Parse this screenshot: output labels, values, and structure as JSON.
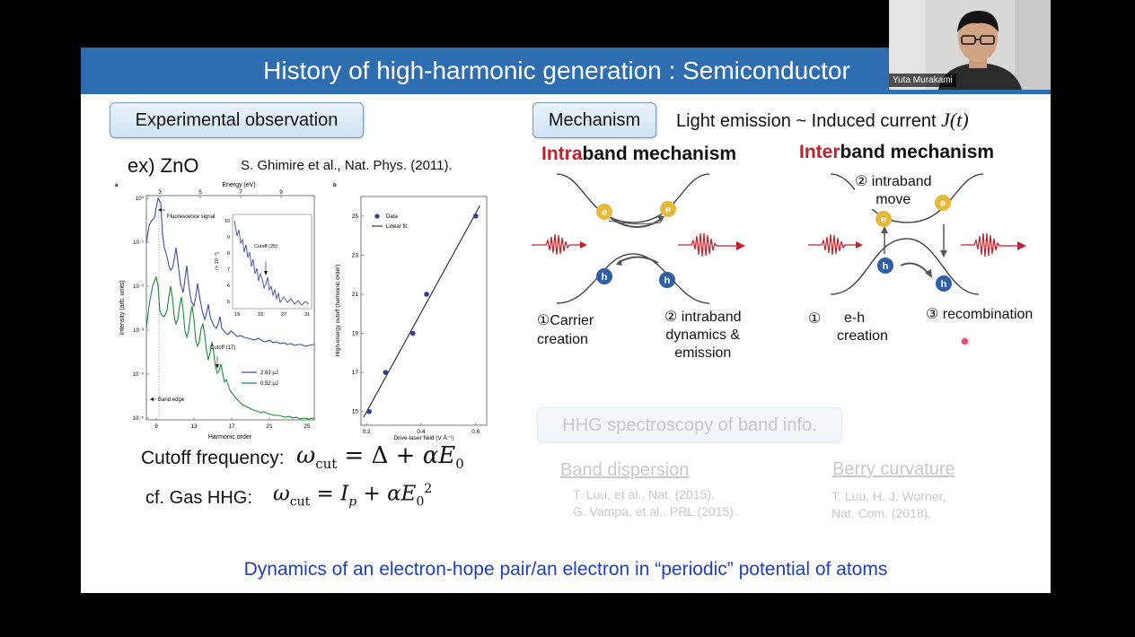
{
  "slide": {
    "title": "History of high-harmonic generation : Semiconductor",
    "bottom_statement": "Dynamics of an electron-hope pair/an electron in “periodic” potential of atoms"
  },
  "webcam": {
    "participant_name": "Yuta Murakami"
  },
  "left": {
    "section_label": "Experimental observation",
    "example_label": "ex) ZnO",
    "citation": "S. Ghimire et al., Nat. Phys. (2011).",
    "cutoff_label": "Cutoff frequency:",
    "cutoff_formula": "ω_cut = Δ + αE₀",
    "gas_label": "cf. Gas HHG:",
    "gas_formula": "ω_cut = I_p + αE₀²"
  },
  "figure_a": {
    "panel_label": "a",
    "top_axis_title": "Energy (eV)",
    "top_ticks": [
      "3",
      "5",
      "7",
      "9"
    ],
    "x_axis_title": "Harmonic order",
    "x_ticks": [
      "9",
      "13",
      "17",
      "21",
      "25"
    ],
    "y_axis_title": "Intensity (arb. units)",
    "y_ticks": [
      "10⁰",
      "10⁻¹",
      "10⁻²",
      "10⁻³",
      "10⁻⁴",
      "10⁻⁵"
    ],
    "annotation_fluorescence": "Fluorescence signal",
    "annotation_cutoff": "Cutoff (17)",
    "annotation_band_edge": "Band edge",
    "legend": [
      "2.63 μJ",
      "0.52 μJ"
    ],
    "inset": {
      "y_axis_title": "(× 10⁻⁴)",
      "y_ticks": [
        "10",
        "9",
        "8",
        "7",
        "6",
        "5"
      ],
      "x_ticks": [
        "19",
        "23",
        "27",
        "31"
      ],
      "annotation": "Cutoff (25)"
    },
    "colors": {
      "high": "#3b4fa0",
      "low": "#1f8a3a"
    }
  },
  "figure_b": {
    "panel_label": "b",
    "x_axis_title": "Drive-laser field (V Å⁻¹)",
    "y_axis_title": "High-energy cutoff (harmonic order)",
    "x_ticks": [
      "0.2",
      "0.4",
      "0.6"
    ],
    "y_ticks": [
      "15",
      "17",
      "19",
      "21",
      "23",
      "25"
    ],
    "legend": [
      "Data",
      "Linear fit"
    ],
    "points": [
      {
        "x": 0.21,
        "y": 15
      },
      {
        "x": 0.27,
        "y": 17
      },
      {
        "x": 0.37,
        "y": 19
      },
      {
        "x": 0.42,
        "y": 21
      },
      {
        "x": 0.6,
        "y": 25
      }
    ]
  },
  "right": {
    "section_label": "Mechanism",
    "emission_text": "Light emission ~ Induced current",
    "emission_symbol": "J(t)",
    "intra_prefix": "Intra",
    "intra_suffix": "band mechanism",
    "inter_prefix": "Inter",
    "inter_suffix": "band mechanism",
    "intra_step1": [
      "①Carrier",
      "creation"
    ],
    "intra_step2": [
      "② intraband",
      "dynamics &",
      "emission"
    ],
    "inter_step1": [
      "①",
      "e-h",
      "creation"
    ],
    "inter_step2": [
      "② intraband",
      "move"
    ],
    "inter_step3": "③ recombination",
    "electron_label": "e",
    "hole_label": "h",
    "spectroscopy_label": "HHG spectroscopy of band info.",
    "band_dispersion": "Band dispersion",
    "band_refs": [
      "T. Luu, et al., Nat. (2015).",
      "G. Vampa, et al., PRL (2015)."
    ],
    "berry_curvature": "Berry curvature",
    "berry_refs": [
      "T. Luu, H. J. Worner,",
      "Nat. Com. (2018)."
    ]
  }
}
